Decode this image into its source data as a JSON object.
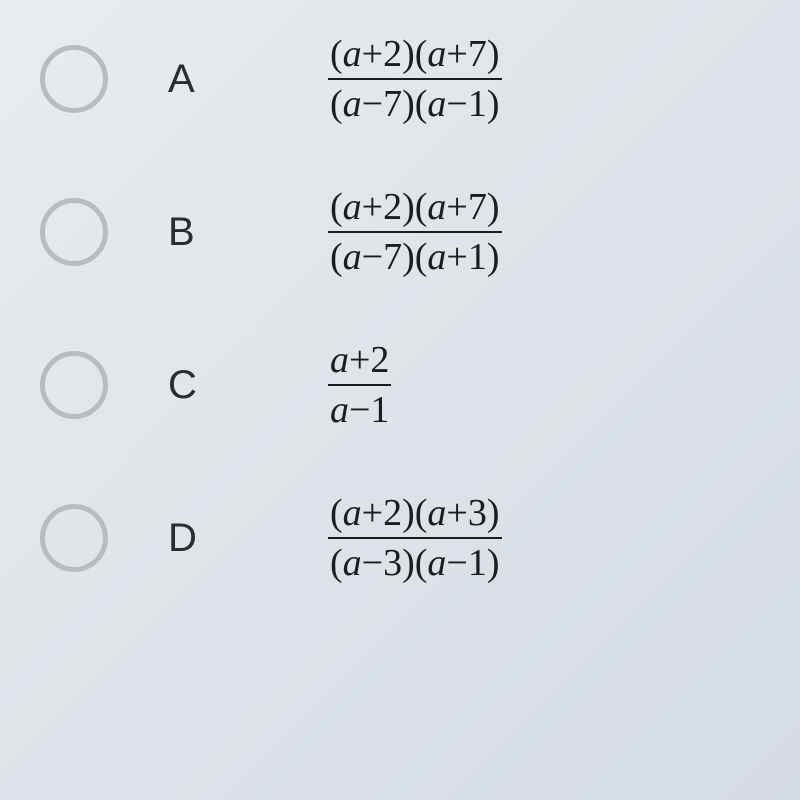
{
  "options": [
    {
      "label": "A",
      "numerator": "(a+2)(a+7)",
      "denominator": "(a−7)(a−1)"
    },
    {
      "label": "B",
      "numerator": "(a+2)(a+7)",
      "denominator": "(a−7)(a+1)"
    },
    {
      "label": "C",
      "numerator": "a+2",
      "denominator": "a−1"
    },
    {
      "label": "D",
      "numerator": "(a+2)(a+3)",
      "denominator": "(a−3)(a−1)"
    }
  ],
  "style": {
    "radio_border_color": "#b5bcc2",
    "text_color": "#1a1c1e",
    "label_color": "#2a2d30",
    "font_size_math": 38,
    "font_size_label": 40
  }
}
